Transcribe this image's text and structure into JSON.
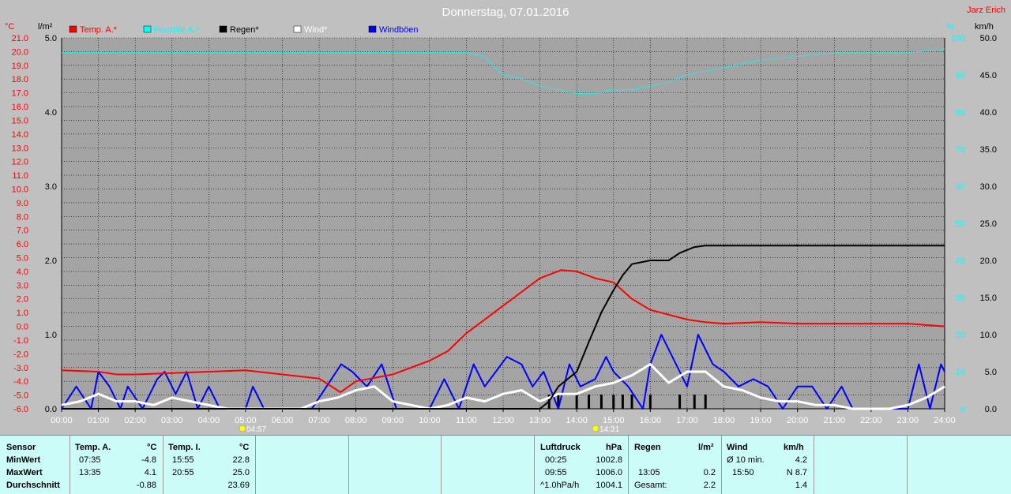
{
  "chart_data": {
    "type": "line",
    "title": "Donnerstag, 07.01.2016",
    "author": "Jarz Erich",
    "units": {
      "temp": "°C",
      "rain": "l/m²",
      "humidity": "%",
      "wind": "km/h"
    },
    "legend": [
      {
        "name": "Temp. A.*",
        "color": "#ff0000"
      },
      {
        "name": "Feuchte A.*",
        "color": "#00ffff"
      },
      {
        "name": "Regen*",
        "color": "#000000"
      },
      {
        "name": "Wind*",
        "color": "#ffffff"
      },
      {
        "name": "Windböen",
        "color": "#0000ff"
      }
    ],
    "x_ticks": [
      "00:00",
      "01:00",
      "02:00",
      "03:00",
      "04:00",
      "05:00",
      "06:00",
      "07:00",
      "08:00",
      "09:00",
      "10:00",
      "11:00",
      "12:00",
      "13:00",
      "14:00",
      "15:00",
      "16:00",
      "17:00",
      "18:00",
      "19:00",
      "20:00",
      "21:00",
      "22:00",
      "23:00",
      "24:00"
    ],
    "temp_ticks": [
      "21.0",
      "20.0",
      "19.0",
      "18.0",
      "17.0",
      "16.0",
      "15.0",
      "14.0",
      "13.0",
      "12.0",
      "11.0",
      "10.0",
      "9.0",
      "8.0",
      "7.0",
      "6.0",
      "5.0",
      "4.0",
      "3.0",
      "2.0",
      "1.0",
      "0.0",
      "-1.0",
      "-2.0",
      "-3.0",
      "-4.0",
      "-5.0",
      "-6.0"
    ],
    "rain_ticks": [
      "5.0",
      "4.0",
      "3.0",
      "2.0",
      "1.0",
      "0.0"
    ],
    "hum_ticks": [
      "100",
      "90",
      "80",
      "70",
      "60",
      "50",
      "40",
      "30",
      "20",
      "10",
      "0"
    ],
    "wind_ticks": [
      "50.0",
      "45.0",
      "40.0",
      "35.0",
      "30.0",
      "25.0",
      "20.0",
      "15.0",
      "10.0",
      "5.0",
      "0.0"
    ],
    "sunrise": "04:57",
    "sunset": "14:31",
    "temp_range": [
      -6,
      21
    ],
    "rain_range": [
      0,
      5
    ],
    "hum_range": [
      0,
      100
    ],
    "wind_range": [
      0,
      50
    ],
    "series": [
      {
        "name": "Temp. A.*",
        "axis": "temp",
        "x": [
          0,
          1,
          1.5,
          2,
          3,
          4,
          5,
          6,
          7,
          7.58,
          8,
          9,
          10,
          10.5,
          11,
          11.5,
          12,
          12.5,
          13,
          13.58,
          14,
          14.5,
          15,
          15.5,
          16,
          17,
          17.5,
          18,
          19,
          20,
          21,
          22,
          23,
          24
        ],
        "y": [
          -3.2,
          -3.3,
          -3.5,
          -3.5,
          -3.4,
          -3.3,
          -3.2,
          -3.5,
          -3.8,
          -4.8,
          -4.0,
          -3.5,
          -2.5,
          -1.8,
          -0.5,
          0.5,
          1.5,
          2.5,
          3.5,
          4.1,
          4.0,
          3.5,
          3.2,
          2.0,
          1.2,
          0.5,
          0.3,
          0.2,
          0.3,
          0.2,
          0.2,
          0.2,
          0.2,
          0.0
        ]
      },
      {
        "name": "Feuchte A.*",
        "axis": "hum",
        "x": [
          0,
          1,
          2,
          3,
          4,
          5,
          6,
          7,
          8,
          9,
          10,
          11,
          11.5,
          12,
          12.5,
          13,
          13.5,
          14,
          14.5,
          15,
          15.5,
          16,
          16.5,
          17,
          17.5,
          18,
          19,
          20,
          21,
          22,
          23,
          24
        ],
        "y": [
          96,
          96,
          96,
          96,
          96,
          96,
          96,
          96,
          96,
          96,
          96,
          96,
          95,
          90,
          89,
          87,
          86,
          85,
          85,
          86,
          86,
          87,
          88,
          90,
          91,
          92,
          94,
          95,
          96,
          96,
          96,
          97
        ]
      },
      {
        "name": "Regen*",
        "axis": "rain",
        "x": [
          0,
          13,
          13.25,
          13.5,
          14,
          14.33,
          14.67,
          15,
          15.25,
          15.5,
          16,
          16.5,
          16.8,
          17.2,
          17.5,
          18,
          24
        ],
        "y": [
          0,
          0,
          0.1,
          0.3,
          0.5,
          0.9,
          1.3,
          1.6,
          1.8,
          1.95,
          2.0,
          2.0,
          2.1,
          2.18,
          2.2,
          2.2,
          2.2
        ]
      },
      {
        "name": "Wind*",
        "axis": "wind",
        "x": [
          0,
          0.5,
          1,
          1.5,
          2,
          2.5,
          3,
          3.5,
          4,
          4.5,
          5,
          5.5,
          6,
          6.5,
          7,
          7.5,
          8,
          8.5,
          9,
          9.5,
          10,
          10.5,
          11,
          11.5,
          12,
          12.5,
          13,
          13.5,
          14,
          14.5,
          15,
          15.5,
          16,
          16.5,
          17,
          17.5,
          18,
          18.5,
          19,
          19.5,
          20,
          20.5,
          21,
          21.5,
          22,
          22.5,
          23,
          23.5,
          24
        ],
        "y": [
          0.5,
          1.0,
          2.0,
          1.0,
          1.0,
          0.5,
          1.5,
          1.0,
          0.5,
          0,
          0,
          0,
          0,
          0,
          1.0,
          1.5,
          2.5,
          3.0,
          1.0,
          0.5,
          0,
          0.5,
          1.5,
          1.0,
          2.0,
          2.5,
          1.0,
          2.0,
          2.0,
          3.0,
          3.5,
          4.5,
          6.0,
          3.5,
          5.0,
          5.0,
          3.0,
          2.5,
          1.5,
          1.0,
          1.0,
          0.5,
          0.5,
          0,
          0,
          0,
          0.5,
          1.5,
          3.0
        ]
      },
      {
        "name": "Windböen",
        "axis": "wind",
        "x": [
          0,
          0.4,
          0.8,
          1.0,
          1.3,
          1.6,
          1.8,
          2.2,
          2.6,
          2.8,
          3.1,
          3.4,
          3.7,
          4.0,
          4.3,
          4.6,
          5.0,
          5.2,
          5.5,
          5.8,
          6.3,
          6.8,
          7.2,
          7.6,
          7.9,
          8.3,
          8.7,
          9.1,
          9.6,
          10.0,
          10.4,
          10.8,
          11.2,
          11.5,
          11.8,
          12.1,
          12.5,
          12.8,
          13.1,
          13.5,
          13.8,
          14.1,
          14.5,
          14.8,
          15.0,
          15.4,
          15.8,
          16.0,
          16.3,
          16.6,
          17.0,
          17.3,
          17.7,
          18.0,
          18.4,
          18.8,
          19.2,
          19.6,
          20.0,
          20.4,
          20.8,
          21.2,
          21.5,
          22.0,
          22.5,
          23.0,
          23.3,
          23.6,
          23.9,
          24
        ],
        "y": [
          0,
          3,
          0,
          5,
          3,
          0,
          3,
          0,
          4,
          5,
          2,
          5,
          0,
          3,
          0,
          0,
          0,
          3,
          0,
          0,
          0,
          0,
          3,
          6,
          5,
          3,
          6,
          0,
          0,
          0,
          4,
          0,
          6,
          3,
          5,
          7,
          6,
          3,
          5,
          0,
          6,
          3,
          4,
          7,
          5,
          3,
          0,
          6,
          10,
          7,
          3,
          10,
          6,
          5,
          3,
          4,
          3,
          0,
          3,
          3,
          0,
          3,
          0,
          0,
          0,
          0,
          6,
          0,
          6,
          5
        ]
      }
    ]
  },
  "summary": {
    "temp_a": {
      "header": "Temp. A.",
      "unit": "°C",
      "rows": [
        {
          "label": "MinWert",
          "time": "07:35",
          "value": "-4.8"
        },
        {
          "label": "MaxWert",
          "time": "13:35",
          "value": "4.1"
        },
        {
          "label": "Durchschnitt",
          "time": "",
          "value": "-0.88"
        }
      ]
    },
    "temp_i": {
      "header": "Temp. I.",
      "unit": "°C",
      "rows": [
        {
          "time": "15:55",
          "value": "22.8"
        },
        {
          "time": "20:55",
          "value": "25.0"
        },
        {
          "time": "",
          "value": "23.69"
        }
      ]
    },
    "sensor_label": "Sensor",
    "pressure": {
      "header": "Luftdruck",
      "unit": "hPa",
      "rows": [
        {
          "time": "00:25",
          "value": "1002.8"
        },
        {
          "time": "09:55",
          "value": "1006.0"
        },
        {
          "time": "^1.0hPa/h",
          "value": "1004.1"
        }
      ]
    },
    "rain": {
      "header": "Regen",
      "unit": "l/m²",
      "rows": [
        {
          "time": "",
          "value": ""
        },
        {
          "time": "13:05",
          "value": "0.2"
        },
        {
          "time": "Gesamt:",
          "value": "2.2"
        }
      ]
    },
    "wind": {
      "header": "Wind",
      "unit": "km/h",
      "rows": [
        {
          "time": "Ø 10 min.",
          "value": "4.2"
        },
        {
          "time": "15:50",
          "value": "N 8.7"
        },
        {
          "time": "",
          "value": "1.4"
        }
      ]
    }
  }
}
